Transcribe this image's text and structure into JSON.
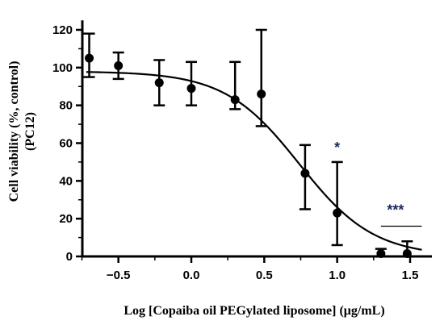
{
  "chart_data": {
    "type": "scatter",
    "xlabel": "Log [Copaiba oil PEGylated liposome] (μg/mL)",
    "ylabel_lines": [
      "Cell viability (%, control)",
      "(PC12)"
    ],
    "xlim": [
      -0.75,
      1.6
    ],
    "ylim": [
      0,
      125
    ],
    "x_ticks": [
      -0.5,
      0.0,
      0.5,
      1.0,
      1.5
    ],
    "x_tick_labels": [
      "−0.5",
      "0.0",
      "0.5",
      "1.0",
      "1.5"
    ],
    "y_ticks": [
      0,
      20,
      40,
      60,
      80,
      100,
      120
    ],
    "y_tick_labels": [
      "0",
      "20",
      "40",
      "60",
      "80",
      "100",
      "120"
    ],
    "points": [
      {
        "x": -0.7,
        "y": 105,
        "err_low": 95,
        "err_high": 118
      },
      {
        "x": -0.5,
        "y": 101,
        "err_low": 94,
        "err_high": 108
      },
      {
        "x": -0.22,
        "y": 92,
        "err_low": 80,
        "err_high": 104
      },
      {
        "x": 0.0,
        "y": 89,
        "err_low": 80,
        "err_high": 103
      },
      {
        "x": 0.3,
        "y": 83,
        "err_low": 78,
        "err_high": 103
      },
      {
        "x": 0.48,
        "y": 86,
        "err_low": 69,
        "err_high": 120
      },
      {
        "x": 0.78,
        "y": 44,
        "err_low": 25,
        "err_high": 59
      },
      {
        "x": 1.0,
        "y": 23,
        "err_low": 6,
        "err_high": 50
      },
      {
        "x": 1.3,
        "y": 1.5,
        "err_low": 0,
        "err_high": 4
      },
      {
        "x": 1.48,
        "y": 1.5,
        "err_low": 0,
        "err_high": 8
      }
    ],
    "fit_curve": {
      "model": "four-parameter logistic",
      "top": 98,
      "bottom": 0,
      "log_ic50": 0.74,
      "hill_slope": -1.7
    },
    "annotations": [
      {
        "text": "*",
        "x": 1.0,
        "y": 55
      },
      {
        "text": "***",
        "x": 1.4,
        "y": 22,
        "bracket_x": [
          1.3,
          1.58
        ]
      }
    ],
    "colors": {
      "marker": "#000000",
      "annotation": "#1a2a5e"
    },
    "grid": false
  }
}
